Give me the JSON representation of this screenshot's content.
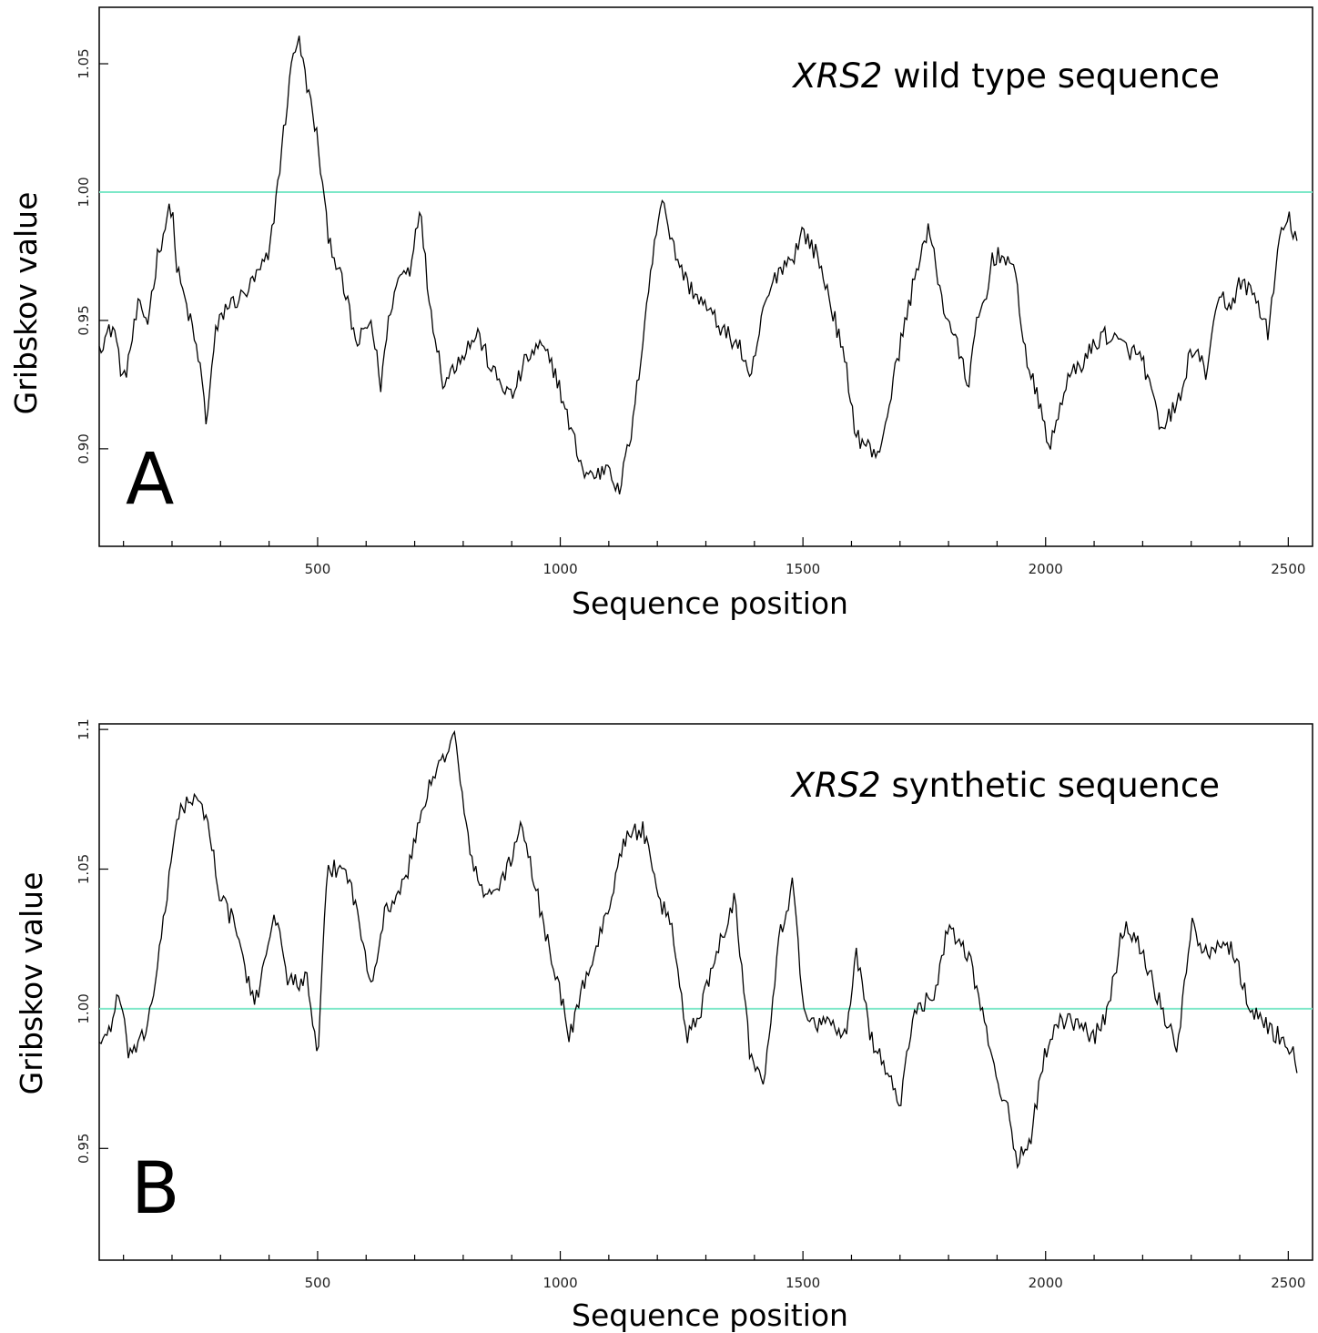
{
  "figure": {
    "panels": [
      {
        "letter": "A",
        "title_gene": "XRS2",
        "title_rest": " wild type sequence"
      },
      {
        "letter": "B",
        "title_gene": "XRS2",
        "title_rest": " synthetic sequence"
      }
    ],
    "reference_line_color": "#7de8c8",
    "series_color": "#000000"
  },
  "chart_data": [
    {
      "type": "line",
      "title": "XRS2 wild type sequence",
      "xlabel": "Sequence position",
      "ylabel": "Gribskov value",
      "xlim": [
        50,
        2550
      ],
      "ylim": [
        0.862,
        1.072
      ],
      "xticks": [
        500,
        1000,
        1500,
        2000,
        2500
      ],
      "xtick_labels": [
        "500",
        "1000",
        "1500",
        "2000",
        "2500"
      ],
      "x_minor_step": 100,
      "yticks": [
        0.9,
        0.95,
        1.0,
        1.05
      ],
      "ytick_labels": [
        "0.90",
        "0.95",
        "1.00",
        "1.05"
      ],
      "reference_line": 1.0,
      "grid": false,
      "series": [
        {
          "x": [
            50,
            80,
            100,
            130,
            150,
            170,
            190,
            200,
            210,
            240,
            260,
            270,
            290,
            310,
            350,
            400,
            450,
            460,
            500,
            520,
            560,
            580,
            610,
            630,
            650,
            670,
            690,
            710,
            730,
            760,
            790,
            830,
            860,
            900,
            930,
            960,
            990,
            1010,
            1050,
            1080,
            1100,
            1120,
            1150,
            1180,
            1210,
            1230,
            1260,
            1300,
            1340,
            1370,
            1390,
            1420,
            1450,
            1480,
            1500,
            1530,
            1560,
            1590,
            1610,
            1640,
            1650,
            1670,
            1700,
            1740,
            1760,
            1790,
            1810,
            1840,
            1860,
            1880,
            1890,
            1920,
            1940,
            1960,
            1990,
            2010,
            2040,
            2080,
            2120,
            2160,
            2200,
            2220,
            2240,
            2260,
            2280,
            2300,
            2330,
            2360,
            2380,
            2400,
            2430,
            2460,
            2480,
            2500,
            2520
          ],
          "y": [
            0.94,
            0.948,
            0.925,
            0.955,
            0.95,
            0.975,
            0.99,
            0.995,
            0.97,
            0.948,
            0.93,
            0.91,
            0.945,
            0.955,
            0.96,
            0.975,
            1.055,
            1.06,
            1.02,
            0.985,
            0.958,
            0.94,
            0.95,
            0.925,
            0.955,
            0.968,
            0.97,
            0.995,
            0.958,
            0.925,
            0.935,
            0.945,
            0.93,
            0.92,
            0.935,
            0.94,
            0.93,
            0.915,
            0.89,
            0.89,
            0.895,
            0.882,
            0.91,
            0.96,
            1.0,
            0.98,
            0.965,
            0.955,
            0.945,
            0.94,
            0.925,
            0.955,
            0.97,
            0.975,
            0.985,
            0.975,
            0.955,
            0.93,
            0.905,
            0.9,
            0.895,
            0.91,
            0.94,
            0.975,
            0.985,
            0.955,
            0.945,
            0.925,
            0.95,
            0.96,
            0.975,
            0.975,
            0.965,
            0.935,
            0.915,
            0.9,
            0.925,
            0.935,
            0.945,
            0.94,
            0.935,
            0.92,
            0.905,
            0.915,
            0.92,
            0.94,
            0.93,
            0.96,
            0.955,
            0.965,
            0.96,
            0.945,
            0.98,
            0.99,
            0.98
          ]
        }
      ]
    },
    {
      "type": "line",
      "title": "XRS2 synthetic sequence",
      "xlabel": "Sequence position",
      "ylabel": "Gribskov value",
      "xlim": [
        50,
        2550
      ],
      "ylim": [
        0.91,
        1.102
      ],
      "xticks": [
        500,
        1000,
        1500,
        2000,
        2500
      ],
      "xtick_labels": [
        "500",
        "1000",
        "1500",
        "2000",
        "2500"
      ],
      "x_minor_step": 100,
      "yticks": [
        0.95,
        1.0,
        1.05,
        1.1
      ],
      "ytick_labels": [
        "0.95",
        "1.00",
        "1.05",
        "1.1"
      ],
      "reference_line": 1.0,
      "grid": false,
      "series": [
        {
          "x": [
            50,
            70,
            90,
            110,
            130,
            150,
            170,
            190,
            210,
            240,
            270,
            300,
            330,
            370,
            410,
            440,
            480,
            500,
            520,
            560,
            580,
            610,
            640,
            680,
            720,
            760,
            780,
            810,
            840,
            880,
            920,
            960,
            1000,
            1020,
            1050,
            1090,
            1130,
            1170,
            1200,
            1230,
            1260,
            1290,
            1320,
            1360,
            1390,
            1420,
            1450,
            1480,
            1500,
            1530,
            1560,
            1590,
            1610,
            1640,
            1680,
            1700,
            1730,
            1770,
            1800,
            1840,
            1870,
            1890,
            1920,
            1940,
            1970,
            2000,
            2030,
            2060,
            2100,
            2130,
            2160,
            2190,
            2220,
            2250,
            2270,
            2300,
            2330,
            2360,
            2390,
            2420,
            2450,
            2480,
            2510,
            2520
          ],
          "y": [
            0.988,
            0.992,
            1.005,
            0.985,
            0.985,
            0.995,
            1.015,
            1.04,
            1.07,
            1.075,
            1.07,
            1.04,
            1.03,
            1.0,
            1.035,
            1.01,
            1.01,
            0.98,
            1.05,
            1.05,
            1.035,
            1.01,
            1.035,
            1.045,
            1.075,
            1.09,
            1.1,
            1.06,
            1.04,
            1.045,
            1.065,
            1.035,
            1.005,
            0.99,
            1.01,
            1.03,
            1.06,
            1.065,
            1.04,
            1.03,
            0.99,
            1.0,
            1.02,
            1.04,
            0.985,
            0.975,
            1.025,
            1.045,
            1.0,
            0.995,
            0.995,
            0.99,
            1.02,
            0.99,
            0.975,
            0.965,
            1.0,
            1.005,
            1.03,
            1.02,
            1.0,
            0.98,
            0.965,
            0.945,
            0.955,
            0.985,
            0.995,
            0.995,
            0.99,
            1.0,
            1.03,
            1.025,
            1.01,
            0.995,
            0.985,
            1.03,
            1.02,
            1.025,
            1.02,
            1.0,
            0.995,
            0.99,
            0.985,
            0.975
          ]
        }
      ]
    }
  ]
}
